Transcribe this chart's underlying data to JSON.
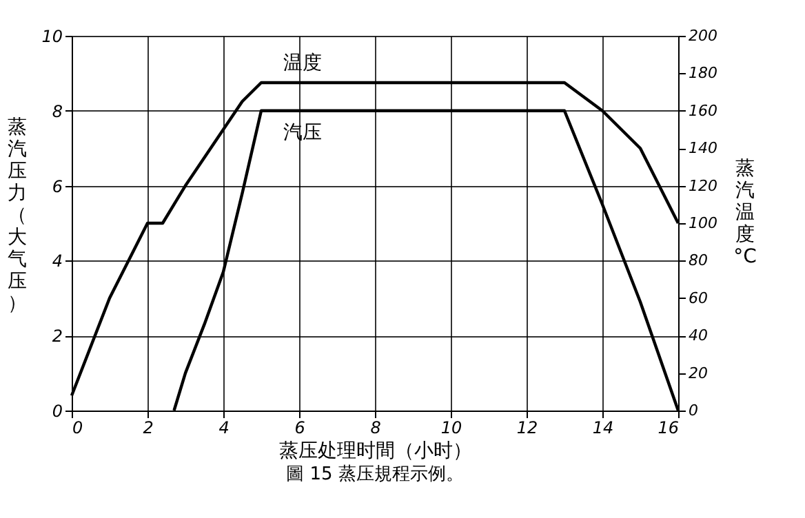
{
  "chart_data": {
    "type": "line",
    "xlabel": "蒸压处理时間（小时）",
    "ylabel": "蒸汽压力（大气压）",
    "y2label": "蒸汽温度°C",
    "annotations": [
      "圖 15  蒸压規程示例。"
    ],
    "xlim": [
      0,
      16
    ],
    "xticks": [
      0,
      2,
      4,
      6,
      8,
      10,
      12,
      14,
      16
    ],
    "ylim": [
      0,
      10
    ],
    "yticks": [
      0,
      2,
      4,
      6,
      8,
      10
    ],
    "y2lim": [
      0,
      200
    ],
    "y2ticks": [
      0,
      20,
      40,
      60,
      80,
      100,
      120,
      140,
      160,
      180,
      200
    ],
    "grid": true,
    "marker": "none",
    "line_style": "solid",
    "series": [
      {
        "name": "温度",
        "color": "#000000",
        "axis": "y2",
        "x": [
          0,
          1,
          2,
          2.4,
          3,
          4,
          4.5,
          5,
          13,
          14,
          15,
          16
        ],
        "values": [
          8,
          60,
          100,
          100,
          120,
          150,
          165,
          175,
          175,
          160,
          140,
          100
        ]
      },
      {
        "name": "汽压",
        "color": "#000000",
        "x": [
          2.7,
          3,
          3.5,
          4,
          4.5,
          5,
          13,
          14,
          15,
          16
        ],
        "values": [
          0,
          1,
          2.3,
          3.7,
          5.8,
          8,
          8,
          5.5,
          2.9,
          0
        ]
      }
    ]
  }
}
